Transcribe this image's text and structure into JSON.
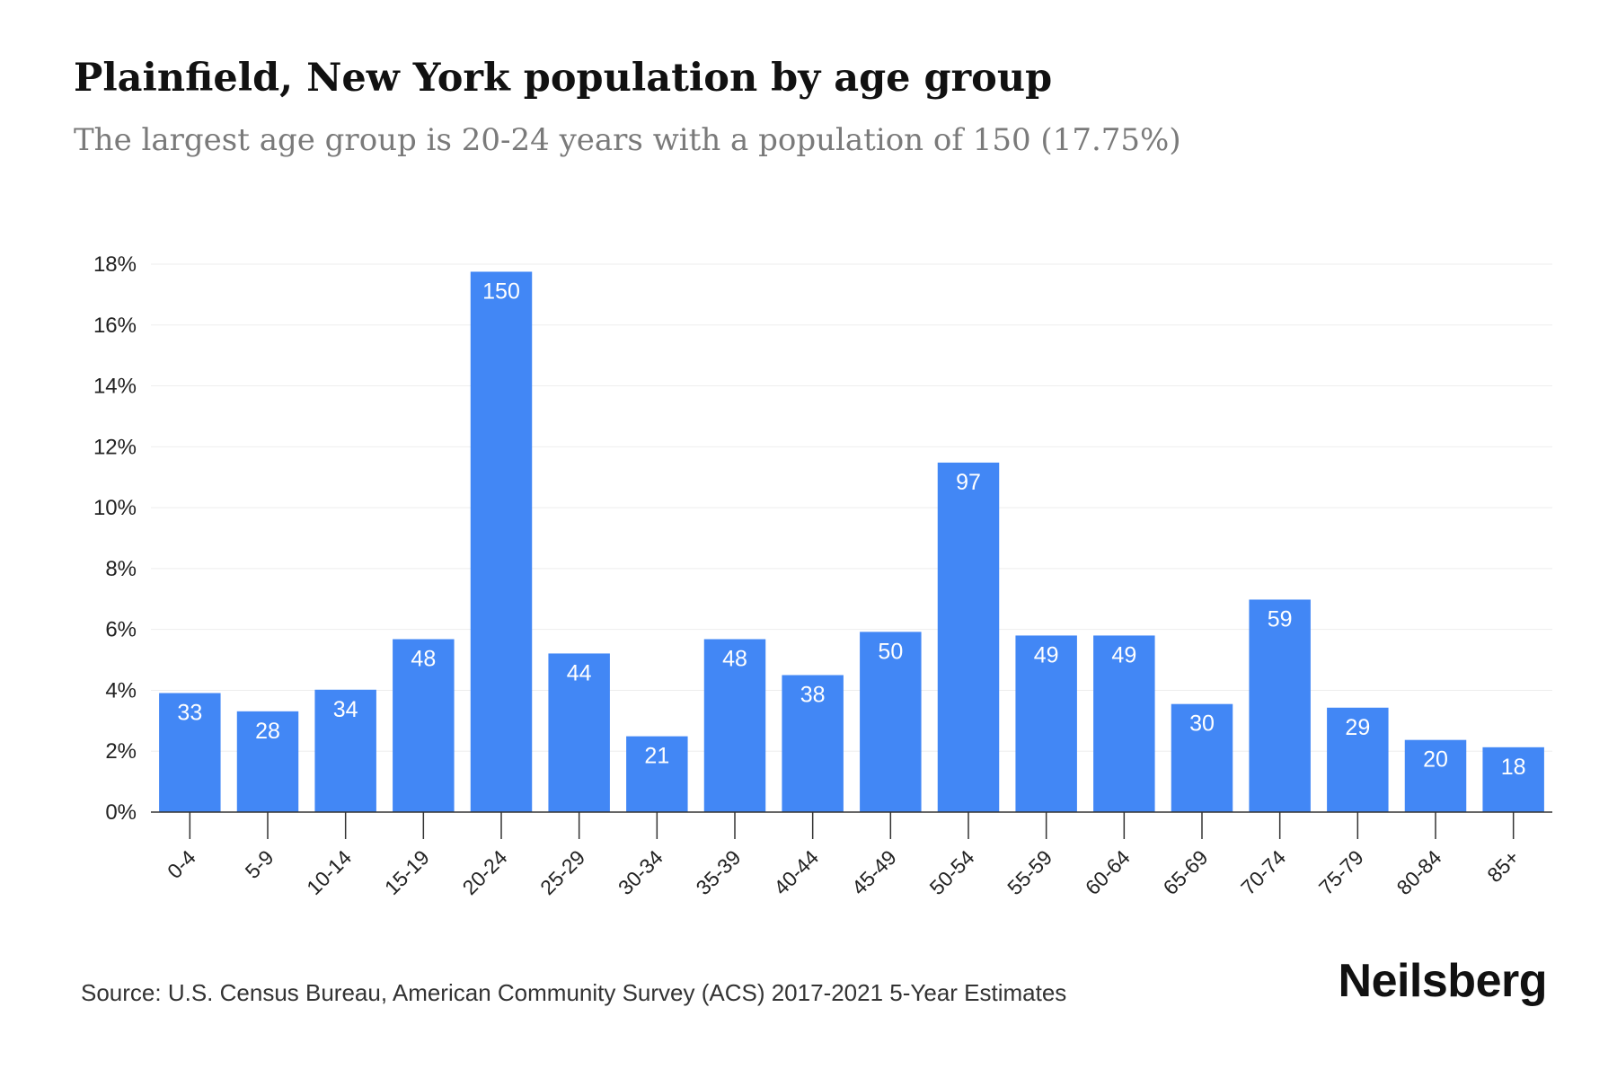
{
  "header": {
    "title": "Plainfield, New York population by age group",
    "subtitle": "The largest age group is 20-24 years with a population of 150 (17.75%)"
  },
  "footer": {
    "source": "Source: U.S. Census Bureau, American Community Survey (ACS) 2017-2021 5-Year Estimates",
    "brand": "Neilsberg"
  },
  "colors": {
    "bar": "#4287f5",
    "grid": "#eeeeee",
    "axis": "#333333"
  },
  "chart_data": {
    "type": "bar",
    "title": "Plainfield, New York population by age group",
    "subtitle": "The largest age group is 20-24 years with a population of 150 (17.75%)",
    "xlabel": "",
    "ylabel": "",
    "ylim": [
      0,
      18
    ],
    "yticks": [
      "0%",
      "2%",
      "4%",
      "6%",
      "8%",
      "10%",
      "12%",
      "14%",
      "16%",
      "18%"
    ],
    "ytick_values": [
      0,
      2,
      4,
      6,
      8,
      10,
      12,
      14,
      16,
      18
    ],
    "grid": true,
    "legend": "none",
    "categories": [
      "0-4",
      "5-9",
      "10-14",
      "15-19",
      "20-24",
      "25-29",
      "30-34",
      "35-39",
      "40-44",
      "45-49",
      "50-54",
      "55-59",
      "60-64",
      "65-69",
      "70-74",
      "75-79",
      "80-84",
      "85+"
    ],
    "percent_values": [
      3.91,
      3.31,
      4.02,
      5.68,
      17.75,
      5.21,
      2.49,
      5.68,
      4.5,
      5.92,
      11.48,
      5.8,
      5.8,
      3.55,
      6.98,
      3.43,
      2.37,
      2.13
    ],
    "values": [
      33,
      28,
      34,
      48,
      150,
      44,
      21,
      48,
      38,
      50,
      97,
      49,
      49,
      30,
      59,
      29,
      20,
      18
    ]
  }
}
